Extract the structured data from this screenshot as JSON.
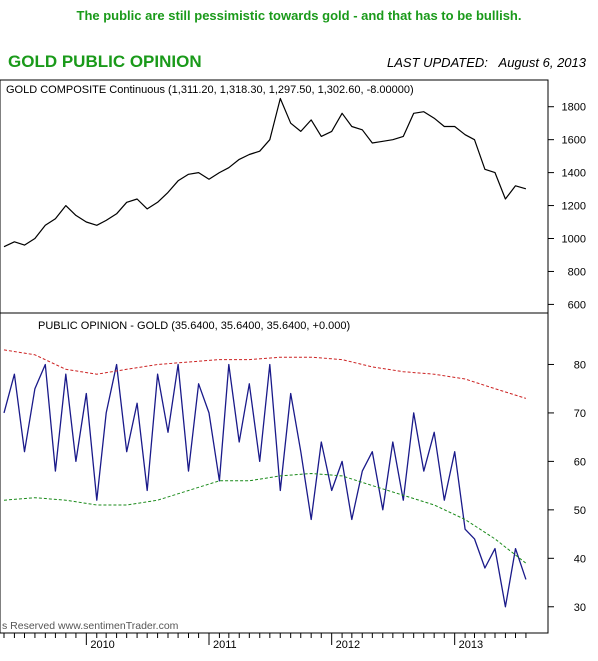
{
  "caption": "The public are still pessimistic towards gold - and that has to be bullish.",
  "chart_data": [
    {
      "type": "line",
      "title": "GOLD PUBLIC OPINION",
      "last_updated_label": "LAST UPDATED:",
      "last_updated_date": "August 6, 2013",
      "header": "GOLD COMPOSITE Continuous (1,311.20, 1,318.30, 1,297.50, 1,302.60, -8.00000)",
      "ylim": [
        560,
        1950
      ],
      "y_ticks": [
        "600",
        "800",
        "1000",
        "1200",
        "1400",
        "1600",
        "1800"
      ],
      "series": [
        {
          "color": "#000000",
          "x": [
            "2009-05",
            "2009-06",
            "2009-07",
            "2009-08",
            "2009-09",
            "2009-10",
            "2009-11",
            "2009-12",
            "2010-01",
            "2010-02",
            "2010-03",
            "2010-04",
            "2010-05",
            "2010-06",
            "2010-07",
            "2010-08",
            "2010-09",
            "2010-10",
            "2010-11",
            "2010-12",
            "2011-01",
            "2011-02",
            "2011-03",
            "2011-04",
            "2011-05",
            "2011-06",
            "2011-07",
            "2011-08",
            "2011-09",
            "2011-10",
            "2011-11",
            "2011-12",
            "2012-01",
            "2012-02",
            "2012-03",
            "2012-04",
            "2012-05",
            "2012-06",
            "2012-07",
            "2012-08",
            "2012-09",
            "2012-10",
            "2012-11",
            "2012-12",
            "2013-01",
            "2013-02",
            "2013-03",
            "2013-04",
            "2013-05",
            "2013-06",
            "2013-07",
            "2013-08"
          ],
          "y": [
            950,
            980,
            960,
            1000,
            1080,
            1120,
            1200,
            1140,
            1100,
            1080,
            1110,
            1150,
            1220,
            1240,
            1180,
            1220,
            1280,
            1350,
            1390,
            1400,
            1360,
            1400,
            1430,
            1480,
            1510,
            1530,
            1600,
            1850,
            1700,
            1650,
            1720,
            1620,
            1650,
            1760,
            1680,
            1660,
            1580,
            1590,
            1600,
            1620,
            1760,
            1770,
            1730,
            1680,
            1680,
            1630,
            1600,
            1420,
            1400,
            1240,
            1320,
            1302
          ]
        }
      ]
    },
    {
      "type": "line",
      "header": "PUBLIC OPINION - GOLD (35.6400, 35.6400, 35.6400, +0.000)",
      "ylim": [
        25,
        90
      ],
      "y_ticks": [
        "30",
        "40",
        "50",
        "60",
        "70",
        "80"
      ],
      "copyright": "s Reserved  www.sentimenTrader.com",
      "x_ticks": [
        "2010",
        "2011",
        "2012",
        "2013"
      ],
      "series": [
        {
          "color": "#1a1a8a",
          "x": [
            "2009-05",
            "2009-06",
            "2009-07",
            "2009-08",
            "2009-09",
            "2009-10",
            "2009-11",
            "2009-12",
            "2010-01",
            "2010-02",
            "2010-03",
            "2010-04",
            "2010-05",
            "2010-06",
            "2010-07",
            "2010-08",
            "2010-09",
            "2010-10",
            "2010-11",
            "2010-12",
            "2011-01",
            "2011-02",
            "2011-03",
            "2011-04",
            "2011-05",
            "2011-06",
            "2011-07",
            "2011-08",
            "2011-09",
            "2011-10",
            "2011-11",
            "2011-12",
            "2012-01",
            "2012-02",
            "2012-03",
            "2012-04",
            "2012-05",
            "2012-06",
            "2012-07",
            "2012-08",
            "2012-09",
            "2012-10",
            "2012-11",
            "2012-12",
            "2013-01",
            "2013-02",
            "2013-03",
            "2013-04",
            "2013-05",
            "2013-06",
            "2013-07",
            "2013-08"
          ],
          "y": [
            70,
            78,
            62,
            75,
            80,
            58,
            78,
            60,
            74,
            52,
            70,
            80,
            62,
            72,
            54,
            78,
            66,
            80,
            58,
            76,
            70,
            56,
            80,
            64,
            76,
            60,
            80,
            54,
            74,
            62,
            48,
            64,
            54,
            60,
            48,
            58,
            62,
            50,
            64,
            52,
            70,
            58,
            66,
            52,
            62,
            46,
            44,
            38,
            42,
            30,
            42,
            35.64
          ]
        },
        {
          "color": "#cc2222",
          "x": [
            "2009-05",
            "2009-08",
            "2009-11",
            "2010-02",
            "2010-05",
            "2010-08",
            "2010-11",
            "2011-02",
            "2011-05",
            "2011-08",
            "2011-11",
            "2012-02",
            "2012-05",
            "2012-08",
            "2012-11",
            "2013-02",
            "2013-05",
            "2013-08"
          ],
          "y": [
            83,
            82,
            79,
            78,
            79,
            80,
            80.5,
            81,
            81,
            81.5,
            81.5,
            81,
            79.5,
            78.5,
            78,
            77,
            75,
            73
          ]
        },
        {
          "color": "#1a8a1a",
          "x": [
            "2009-05",
            "2009-08",
            "2009-11",
            "2010-02",
            "2010-05",
            "2010-08",
            "2010-11",
            "2011-02",
            "2011-05",
            "2011-08",
            "2011-11",
            "2012-02",
            "2012-05",
            "2012-08",
            "2012-11",
            "2013-02",
            "2013-05",
            "2013-08"
          ],
          "y": [
            52,
            52.5,
            52,
            51,
            51,
            52,
            54,
            56,
            56,
            57,
            57.5,
            57,
            55,
            53,
            51,
            48,
            44,
            39
          ]
        }
      ]
    }
  ]
}
